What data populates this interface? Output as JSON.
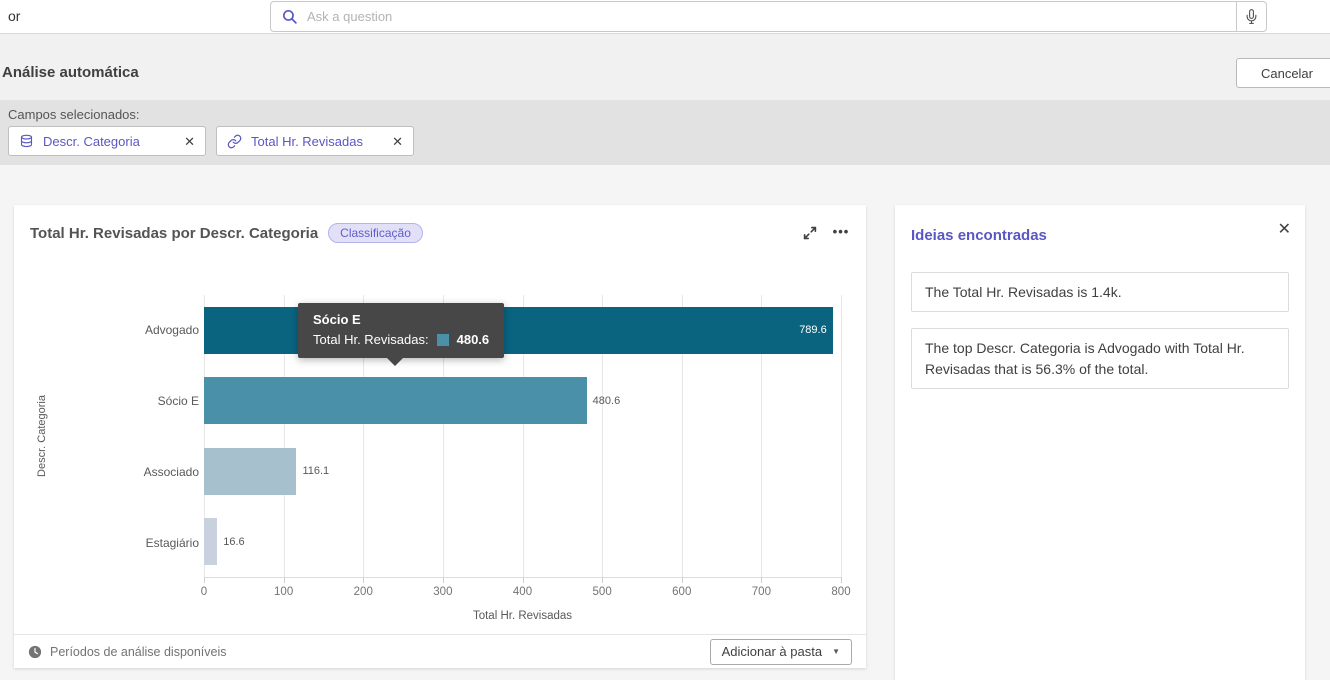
{
  "top_bar": {
    "window_label": "or",
    "search": {
      "placeholder": "Ask a question",
      "icon": "search-icon"
    },
    "mic_icon": "microphone-icon"
  },
  "header": {
    "title": "Análise automática",
    "cancel_label": "Cancelar"
  },
  "fields": {
    "label": "Campos selecionados:",
    "chips": [
      {
        "label": "Descr. Categoria",
        "icon": "database-icon",
        "close_icon": "close-icon"
      },
      {
        "label": "Total Hr. Revisadas",
        "icon": "link-icon",
        "close_icon": "close-icon"
      }
    ]
  },
  "chart_card": {
    "title": "Total Hr. Revisadas por Descr. Categoria",
    "badge": "Classificação",
    "icons": [
      "expand-icon",
      "more-options-icon"
    ],
    "tooltip": {
      "category": "Sócio E",
      "metric_label": "Total Hr. Revisadas:",
      "value": "480.6",
      "swatch_color": "#4a90a8",
      "background": "#474747"
    },
    "footer": {
      "clock_icon": "clock-icon",
      "periods_label": "Períodos de análise disponíveis",
      "add_button": "Adicionar à pasta",
      "caret_icon": "chevron-down-icon"
    }
  },
  "chart_data": {
    "type": "bar",
    "orientation": "horizontal",
    "title": "Total Hr. Revisadas por Descr. Categoria",
    "categories": [
      "Advogado",
      "Sócio E",
      "Associado",
      "Estagiário"
    ],
    "values": [
      789.6,
      480.6,
      116.1,
      16.6
    ],
    "value_labels": [
      "789.6",
      "480.6",
      "116.1",
      "16.6"
    ],
    "bar_colors": [
      "#0a6480",
      "#4a90a8",
      "#a6c0ce",
      "#c8d1dd"
    ],
    "xlabel": "Total Hr. Revisadas",
    "ylabel": "Descr. Categoria",
    "xlim": [
      0,
      800
    ],
    "xticks": [
      0,
      100,
      200,
      300,
      400,
      500,
      600,
      700,
      800
    ],
    "grid": true,
    "legend": false
  },
  "insights_panel": {
    "title": "Ideias encontradas",
    "close_icon": "close-icon",
    "items": [
      "The Total Hr. Revisadas is 1.4k.",
      "The top Descr. Categoria is Advogado with Total Hr. Revisadas that is 56.3% of the total."
    ]
  },
  "colors": {
    "accent_purple": "#5a57c4",
    "tooltip_bg": "#474747",
    "band_gray": "#e2e2e2",
    "page_gray": "#f1f1f1"
  }
}
